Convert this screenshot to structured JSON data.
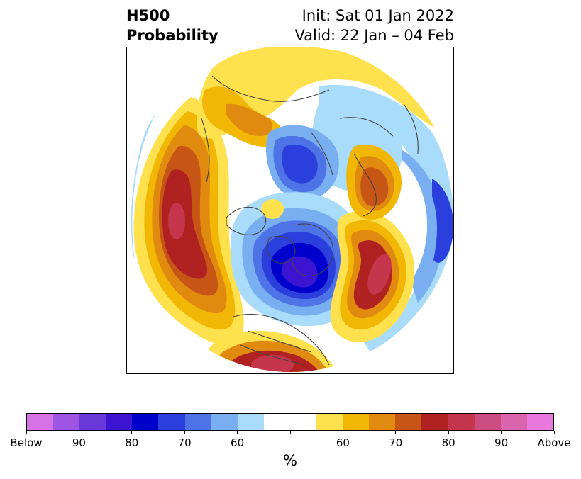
{
  "title": {
    "left_line1": "H500",
    "left_line2": "Probability",
    "right_line1": "Init: Sat 01 Jan 2022",
    "right_line2": "Valid: 22 Jan – 04 Feb"
  },
  "map": {
    "projection": "north-polar-stereographic",
    "field": "500 hPa height anomaly probability",
    "features": [
      {
        "name": "deep-blue-below-normal",
        "region": "northwestern Canada / Alaska",
        "level": "90+ below"
      },
      {
        "name": "blue-below-normal",
        "region": "northern Russia / Barents Sea",
        "level": "80 below"
      },
      {
        "name": "red-above-normal",
        "region": "central North Pacific",
        "level": "90+ above"
      },
      {
        "name": "red-above-normal",
        "region": "North Atlantic",
        "level": "90+ above"
      },
      {
        "name": "red-above-normal",
        "region": "southern United States",
        "level": "90 above"
      },
      {
        "name": "orange-above-normal",
        "region": "Scandinavia",
        "level": "70 above"
      },
      {
        "name": "yellow-above-normal",
        "region": "eastern Asia",
        "level": "60 above"
      }
    ]
  },
  "colorbar": {
    "unit": "%",
    "colors": [
      "#d671e6",
      "#9e55e3",
      "#6a37d9",
      "#3b15d2",
      "#0000cc",
      "#2a3fdc",
      "#4e73e6",
      "#79aff0",
      "#a9dbfb",
      "#ffffff",
      "#ffe14d",
      "#f2b705",
      "#e08a10",
      "#c75515",
      "#b02222",
      "#c5364d",
      "#cc4d7f",
      "#d966ad",
      "#e978de"
    ],
    "ticks": [
      "Below",
      "90",
      "80",
      "70",
      "60",
      "",
      "60",
      "70",
      "80",
      "90",
      "Above"
    ]
  }
}
